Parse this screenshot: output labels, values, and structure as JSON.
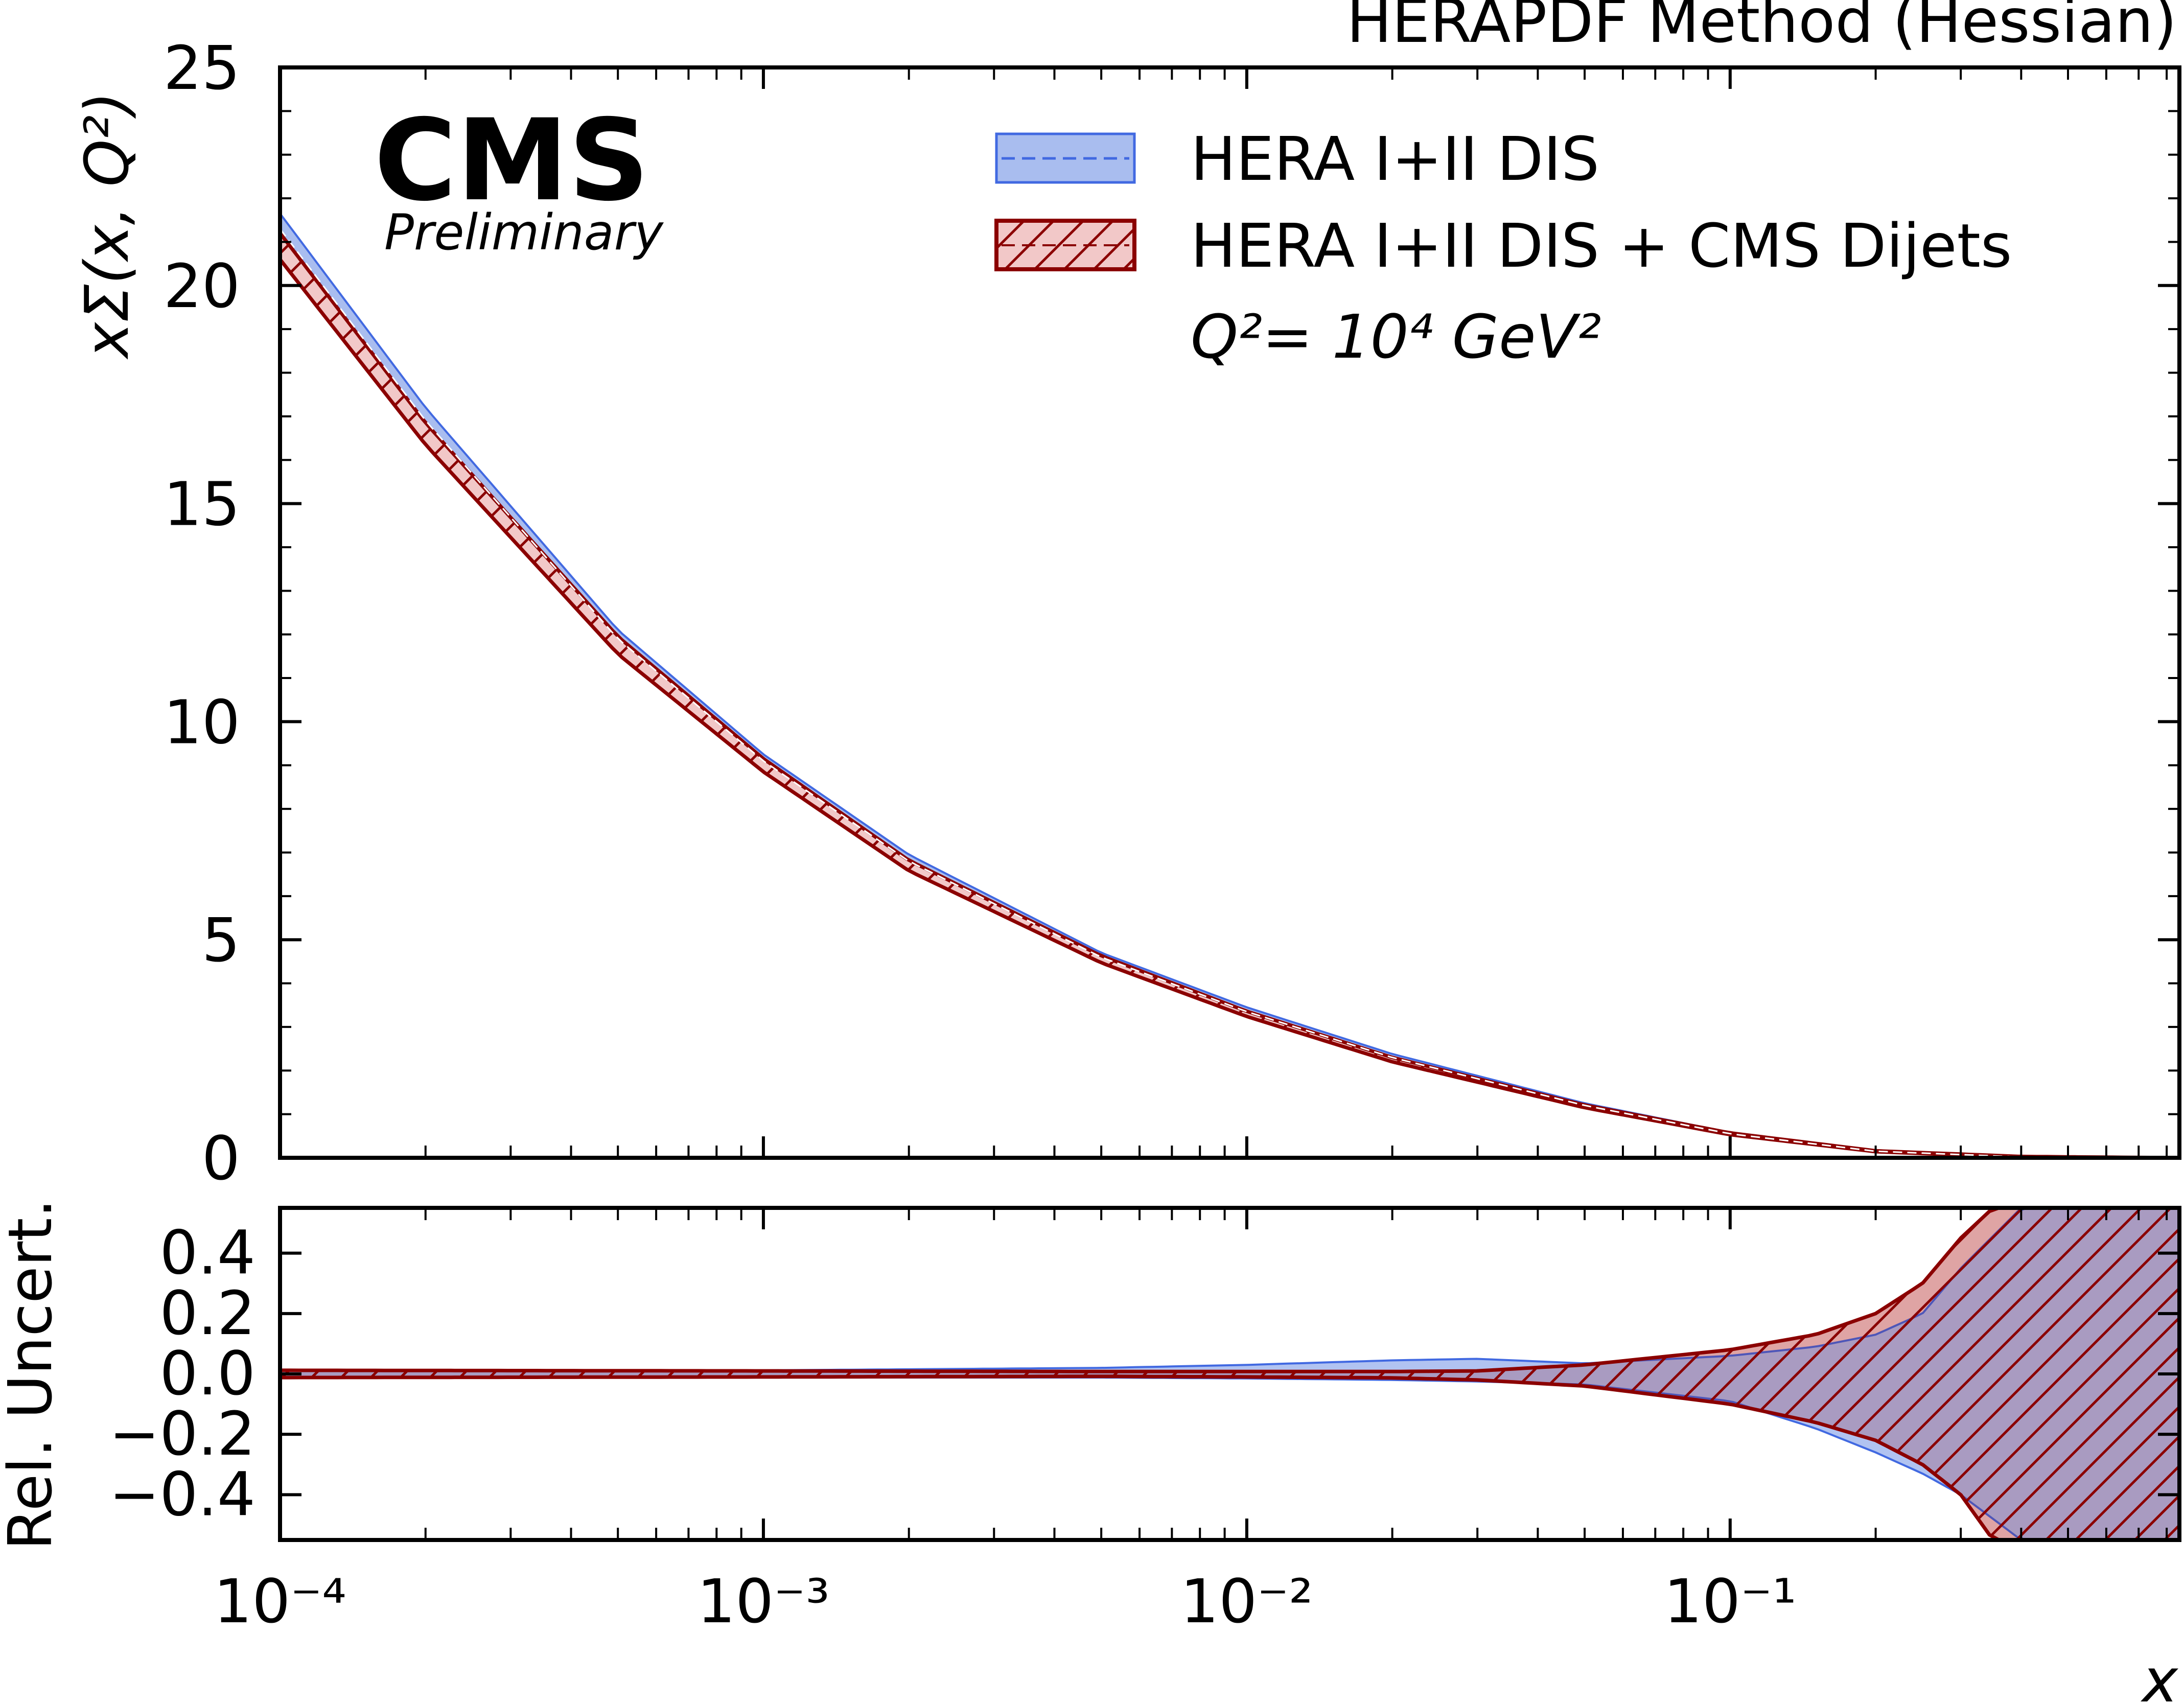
{
  "chart_data": [
    {
      "type": "area",
      "panel": "upper",
      "title": "HERAPDF Method (Hessian)",
      "ylabel": "xΣ(x, Q²)",
      "xlabel": "",
      "xscale": "log",
      "xlim": [
        0.0001,
        0.85
      ],
      "ylim": [
        0,
        25
      ],
      "yticks": [
        0,
        5,
        10,
        15,
        20,
        25
      ],
      "ytick_labels": [
        "0",
        "5",
        "10",
        "15",
        "20",
        "25"
      ],
      "x": [
        0.0001,
        0.0002,
        0.0005,
        0.001,
        0.002,
        0.005,
        0.01,
        0.02,
        0.05,
        0.1,
        0.2,
        0.4,
        0.85
      ],
      "series": [
        {
          "name": "HERA I+II DIS",
          "style": "band",
          "color": "#4169e1",
          "fill": "#a9bdef",
          "central": [
            21.3,
            16.9,
            11.9,
            9.1,
            6.8,
            4.6,
            3.35,
            2.3,
            1.2,
            0.55,
            0.15,
            0.02,
            0.0
          ],
          "upper": [
            21.65,
            17.2,
            12.1,
            9.25,
            6.95,
            4.7,
            3.45,
            2.38,
            1.25,
            0.58,
            0.17,
            0.03,
            0.0
          ],
          "lower": [
            20.95,
            16.6,
            11.7,
            8.95,
            6.65,
            4.5,
            3.25,
            2.22,
            1.15,
            0.52,
            0.13,
            0.01,
            0.0
          ]
        },
        {
          "name": "HERA I+II DIS + CMS Dijets",
          "style": "hatched band",
          "color": "#8b0000",
          "fill": "#f2c8c8",
          "central": [
            20.9,
            16.6,
            11.75,
            9.0,
            6.7,
            4.55,
            3.3,
            2.25,
            1.18,
            0.55,
            0.15,
            0.02,
            0.0
          ],
          "upper": [
            21.2,
            16.85,
            11.95,
            9.15,
            6.82,
            4.63,
            3.36,
            2.3,
            1.21,
            0.57,
            0.16,
            0.03,
            0.0
          ],
          "lower": [
            20.6,
            16.35,
            11.55,
            8.85,
            6.58,
            4.47,
            3.24,
            2.2,
            1.15,
            0.53,
            0.14,
            0.01,
            0.0
          ]
        }
      ],
      "legend": {
        "placement": "top-right",
        "entries": [
          "HERA I+II DIS",
          "HERA I+II DIS + CMS Dijets"
        ],
        "note": "Q²= 10⁴ GeV²"
      },
      "annotations": {
        "experiment": "CMS",
        "status": "Preliminary"
      }
    },
    {
      "type": "area",
      "panel": "lower",
      "ylabel": "Rel. Uncert.",
      "xlabel": "x",
      "xscale": "log",
      "xlim": [
        0.0001,
        0.85
      ],
      "ylim": [
        -0.55,
        0.55
      ],
      "yticks": [
        -0.4,
        -0.2,
        0.0,
        0.2,
        0.4
      ],
      "ytick_labels": [
        "−0.4",
        "−0.2",
        "0.0",
        "0.2",
        "0.4"
      ],
      "xticks": [
        0.0001,
        0.001,
        0.01,
        0.1
      ],
      "xtick_labels": [
        "10⁻⁴",
        "10⁻³",
        "10⁻²",
        "10⁻¹"
      ],
      "series": [
        {
          "name": "HERA I+II DIS",
          "color": "#4169e1",
          "fill": "#a9bdef",
          "x": [
            0.0001,
            0.001,
            0.005,
            0.01,
            0.02,
            0.03,
            0.05,
            0.1,
            0.15,
            0.2,
            0.25,
            0.3,
            0.4,
            0.6,
            0.85
          ],
          "upper": [
            0.012,
            0.012,
            0.02,
            0.03,
            0.045,
            0.05,
            0.035,
            0.06,
            0.09,
            0.13,
            0.2,
            0.35,
            0.55,
            0.55,
            0.55
          ],
          "lower": [
            -0.012,
            -0.012,
            -0.012,
            -0.015,
            -0.02,
            -0.025,
            -0.035,
            -0.09,
            -0.18,
            -0.26,
            -0.33,
            -0.4,
            -0.55,
            -0.55,
            -0.55
          ]
        },
        {
          "name": "HERA I+II DIS + CMS Dijets",
          "color": "#8b0000",
          "fill": "#f2c8c8",
          "x": [
            0.0001,
            0.001,
            0.005,
            0.01,
            0.02,
            0.03,
            0.05,
            0.1,
            0.15,
            0.2,
            0.25,
            0.3,
            0.35,
            0.6,
            0.85
          ],
          "upper": [
            0.012,
            0.01,
            0.008,
            0.008,
            0.008,
            0.01,
            0.03,
            0.08,
            0.13,
            0.2,
            0.3,
            0.45,
            0.55,
            0.55,
            0.55
          ],
          "lower": [
            -0.012,
            -0.01,
            -0.008,
            -0.01,
            -0.013,
            -0.02,
            -0.04,
            -0.1,
            -0.16,
            -0.22,
            -0.3,
            -0.4,
            -0.55,
            -0.55,
            -0.55
          ]
        }
      ]
    }
  ]
}
